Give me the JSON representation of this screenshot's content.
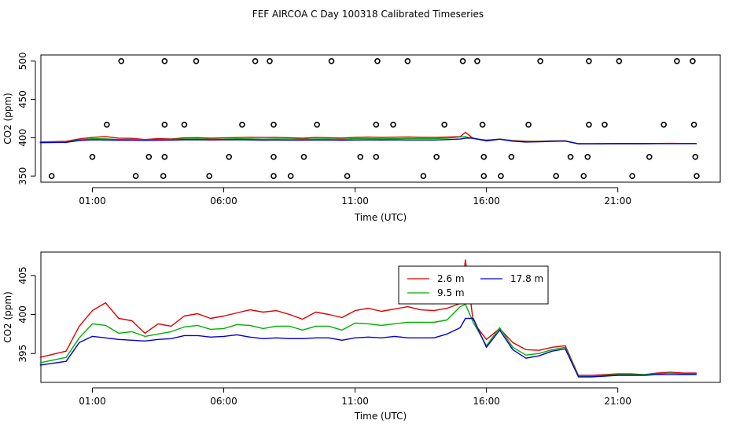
{
  "title": "FEF AIRCOA C  Day 100318  Calibrated Timeseries",
  "chart_data": [
    {
      "type": "line",
      "panel": "top",
      "xlabel": "Time (UTC)",
      "ylabel": "CO2 (ppm)",
      "x_ticks": [
        "01:00",
        "06:00",
        "11:00",
        "16:00",
        "21:00"
      ],
      "x_tick_hours": [
        1,
        6,
        11,
        16,
        21
      ],
      "xlim_hours": [
        -0.96,
        24.9
      ],
      "y_ticks": [
        "350",
        "400",
        "450",
        "500"
      ],
      "y_tick_values": [
        350,
        400,
        450,
        500
      ],
      "ylim": [
        342,
        508
      ],
      "flag_points": {
        "marker": "open-circle",
        "levels": [
          350,
          375,
          417,
          500
        ],
        "hours": {
          "350": [
            -0.55,
            2.65,
            3.7,
            5.45,
            7.9,
            8.55,
            10.7,
            13.6,
            15.9,
            16.55,
            18.65,
            19.7,
            21.55,
            24.0
          ],
          "375": [
            1.0,
            3.15,
            3.75,
            6.2,
            7.9,
            9.05,
            11.2,
            11.8,
            14.1,
            15.9,
            16.95,
            19.2,
            19.85,
            22.2,
            23.95
          ],
          "417": [
            1.55,
            3.75,
            4.5,
            6.7,
            7.9,
            9.55,
            11.8,
            12.45,
            14.4,
            15.85,
            17.6,
            19.9,
            20.5,
            22.75,
            23.9
          ],
          "500": [
            2.1,
            3.75,
            4.95,
            7.2,
            7.75,
            10.1,
            11.85,
            13.0,
            15.1,
            15.65,
            18.05,
            19.9,
            21.05,
            23.25,
            23.85
          ]
        }
      },
      "series": [
        {
          "label": "2.6 m",
          "color": "#e00000"
        },
        {
          "label": "9.5 m",
          "color": "#00b000"
        },
        {
          "label": "17.8 m",
          "color": "#0000d0"
        }
      ]
    },
    {
      "type": "line",
      "panel": "bottom",
      "xlabel": "Time (UTC)",
      "ylabel": "CO2 (ppm)",
      "x_ticks": [
        "01:00",
        "06:00",
        "11:00",
        "16:00",
        "21:00"
      ],
      "x_tick_hours": [
        1,
        6,
        11,
        16,
        21
      ],
      "xlim_hours": [
        -0.96,
        24.9
      ],
      "y_ticks": [
        "395",
        "400",
        "405"
      ],
      "y_tick_values": [
        395,
        400,
        405
      ],
      "ylim": [
        391.3,
        408.0
      ],
      "legend": {
        "position": "top-center",
        "entries": [
          "2.6 m",
          "9.5 m",
          "17.8 m"
        ]
      },
      "series": [
        {
          "label": "2.6 m",
          "color": "#e00000",
          "hours": [
            -1,
            0,
            0.5,
            1,
            1.5,
            2,
            2.5,
            3,
            3.5,
            4,
            4.5,
            5,
            5.5,
            6,
            6.5,
            7,
            7.5,
            8,
            8.5,
            9,
            9.5,
            10,
            10.5,
            11,
            11.5,
            12,
            12.5,
            13,
            13.5,
            14,
            14.5,
            15,
            15.2,
            15.5,
            16,
            16.5,
            17,
            17.5,
            18,
            18.5,
            19,
            19.5,
            20,
            20.5,
            21,
            21.5,
            22,
            22.5,
            23,
            23.5,
            24
          ],
          "values": [
            394.5,
            395.3,
            398.5,
            400.5,
            401.5,
            399.5,
            399.2,
            397.6,
            398.8,
            398.5,
            399.8,
            400.1,
            399.5,
            399.8,
            400.2,
            400.6,
            400.3,
            400.5,
            400.0,
            399.4,
            400.3,
            400.0,
            399.6,
            400.5,
            400.8,
            400.4,
            400.7,
            401.0,
            400.6,
            400.5,
            400.8,
            401.4,
            407.0,
            399.0,
            396.8,
            398.2,
            396.4,
            395.5,
            395.4,
            395.8,
            396.0,
            392.2,
            392.2,
            392.3,
            392.4,
            392.4,
            392.3,
            392.5,
            392.6,
            392.5,
            392.5
          ]
        },
        {
          "label": "9.5 m",
          "color": "#00b000",
          "hours": [
            -1,
            0,
            0.5,
            1,
            1.5,
            2,
            2.5,
            3,
            3.5,
            4,
            4.5,
            5,
            5.5,
            6,
            6.5,
            7,
            7.5,
            8,
            8.5,
            9,
            9.5,
            10,
            10.5,
            11,
            11.5,
            12,
            12.5,
            13,
            13.5,
            14,
            14.5,
            15,
            15.2,
            15.5,
            16,
            16.5,
            17,
            17.5,
            18,
            18.5,
            19,
            19.5,
            20,
            20.5,
            21,
            21.5,
            22,
            22.5,
            23,
            23.5,
            24
          ],
          "values": [
            393.8,
            394.5,
            397.0,
            398.8,
            398.6,
            397.6,
            397.8,
            397.2,
            397.5,
            397.8,
            398.4,
            398.6,
            398.1,
            398.2,
            398.7,
            398.6,
            398.2,
            398.5,
            398.5,
            398.0,
            398.5,
            398.5,
            398.0,
            398.9,
            398.8,
            398.6,
            398.8,
            399.0,
            399.0,
            399.0,
            399.3,
            401.0,
            401.3,
            399.0,
            396.0,
            398.3,
            395.8,
            394.8,
            395.0,
            395.5,
            395.8,
            392.1,
            392.1,
            392.2,
            392.3,
            392.3,
            392.3,
            392.4,
            392.5,
            392.4,
            392.4
          ]
        },
        {
          "label": "17.8 m",
          "color": "#0000d0",
          "hours": [
            -1,
            0,
            0.5,
            1,
            1.5,
            2,
            2.5,
            3,
            3.5,
            4,
            4.5,
            5,
            5.5,
            6,
            6.5,
            7,
            7.5,
            8,
            8.5,
            9,
            9.5,
            10,
            10.5,
            11,
            11.5,
            12,
            12.5,
            13,
            13.5,
            14,
            14.5,
            15,
            15.2,
            15.5,
            16,
            16.5,
            17,
            17.5,
            18,
            18.5,
            19,
            19.5,
            20,
            20.5,
            21,
            21.5,
            22,
            22.5,
            23,
            23.5,
            24
          ],
          "values": [
            393.5,
            394.0,
            396.4,
            397.2,
            397.0,
            396.8,
            396.7,
            396.6,
            396.8,
            396.9,
            397.3,
            397.3,
            397.1,
            397.2,
            397.4,
            397.1,
            396.9,
            397.0,
            396.9,
            396.9,
            397.0,
            397.0,
            396.7,
            397.0,
            397.1,
            397.0,
            397.2,
            397.0,
            397.0,
            397.0,
            397.5,
            398.3,
            399.5,
            399.5,
            395.8,
            398.0,
            395.5,
            394.4,
            394.7,
            395.3,
            395.6,
            392.0,
            392.0,
            392.1,
            392.2,
            392.2,
            392.2,
            392.3,
            392.3,
            392.3,
            392.3
          ]
        }
      ]
    }
  ]
}
